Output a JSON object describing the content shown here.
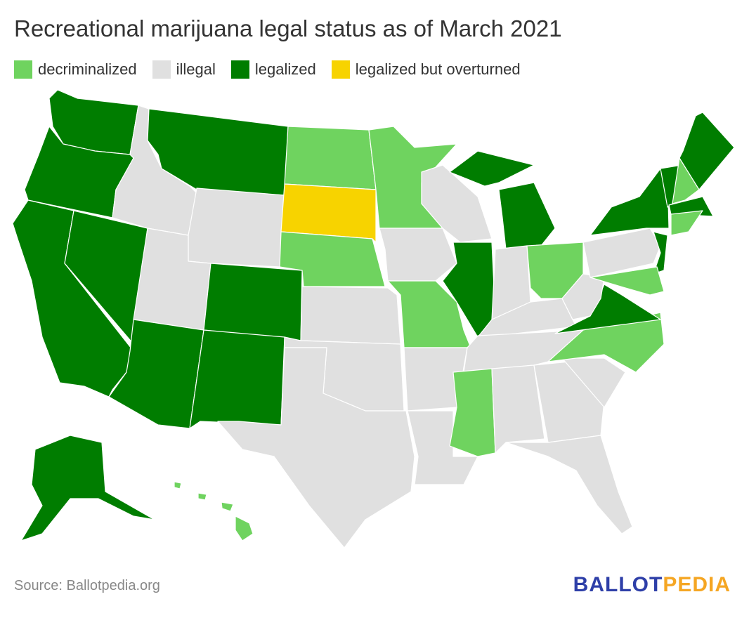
{
  "title": "Recreational marijuana legal status as of March 2021",
  "legend": [
    {
      "label": "decriminalized",
      "color": "#6fd35f"
    },
    {
      "label": "illegal",
      "color": "#e0e0e0"
    },
    {
      "label": "legalized",
      "color": "#007d00"
    },
    {
      "label": "legalized but overturned",
      "color": "#f7d300"
    }
  ],
  "source": "Source: Ballotpedia.org",
  "logo": {
    "part1": "BALLOT",
    "part2": "PEDIA"
  }
}
